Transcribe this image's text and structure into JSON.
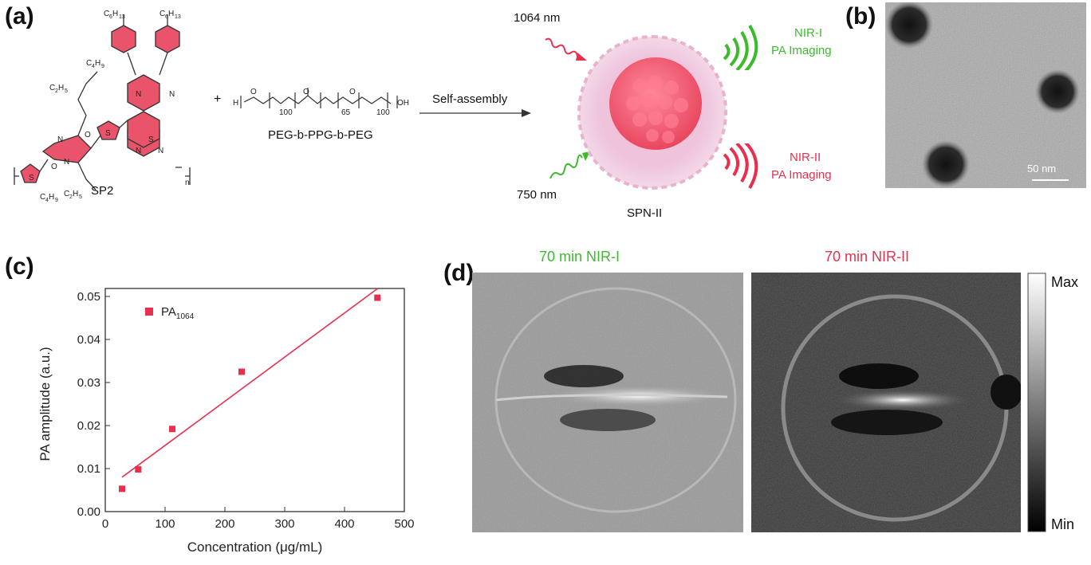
{
  "panels": {
    "a": {
      "label": "(a)",
      "polymer_name": "SP2",
      "plus": "+",
      "copolymer_name": "PEG-b-PPG-b-PEG",
      "peg_sub1": "100",
      "peg_sub2": "65",
      "peg_sub3": "100",
      "arrow_label": "Self-assembly",
      "laser_top": "1064 nm",
      "laser_bottom": "750 nm",
      "nanoparticle": "SPN-II",
      "nir1_line1": "NIR-I",
      "nir1_line2": "PA Imaging",
      "nir2_line1": "NIR-II",
      "nir2_line2": "PA Imaging",
      "colors": {
        "nir1": "#3dbb2c",
        "nir2": "#e8304e",
        "polymer": "#e9546b"
      }
    },
    "b": {
      "label": "(b)",
      "scale_bar": "50 nm"
    },
    "c": {
      "label": "(c)"
    },
    "d": {
      "label": "(d)",
      "left_title": "70 min NIR-I",
      "right_title": "70 min NIR-II",
      "colorbar_max": "Max",
      "colorbar_min": "Min"
    }
  },
  "chart_data": {
    "type": "scatter",
    "xlabel": "Concentration (μg/mL)",
    "ylabel": "PA amplitude (a.u.)",
    "xlim": [
      0,
      500
    ],
    "ylim": [
      0,
      0.05
    ],
    "xticks": [
      "0",
      "100",
      "200",
      "300",
      "400",
      "500"
    ],
    "yticks": [
      "0.00",
      "0.01",
      "0.02",
      "0.03",
      "0.04",
      "0.05"
    ],
    "legend": {
      "label": "PA",
      "sub": "1064"
    },
    "legend_position": "top-left",
    "series": [
      {
        "name": "PA1064",
        "color": "#e8304e",
        "x": [
          28,
          55,
          112,
          228,
          455
        ],
        "y": [
          0.0053,
          0.0098,
          0.0192,
          0.0325,
          0.0497
        ]
      }
    ],
    "fit_line": {
      "x": [
        28,
        455
      ],
      "y": [
        0.008,
        0.0518
      ]
    }
  }
}
